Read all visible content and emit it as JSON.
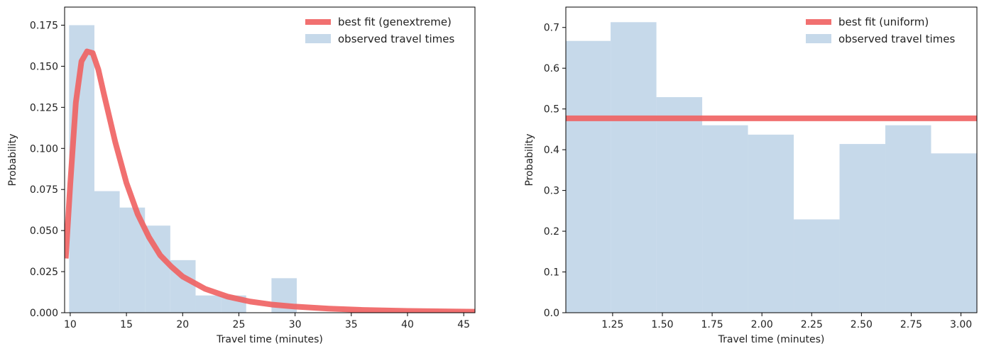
{
  "chart_data": [
    {
      "type": "bar",
      "subtype": "histogram-with-fit",
      "xlabel": "Travel time (minutes)",
      "ylabel": "Probability",
      "xlim": [
        9.5,
        46
      ],
      "ylim": [
        0,
        0.186
      ],
      "xticks": [
        10,
        15,
        20,
        25,
        30,
        35,
        40,
        45
      ],
      "xtick_labels": [
        "10",
        "15",
        "20",
        "25",
        "30",
        "35",
        "40",
        "45"
      ],
      "yticks": [
        0,
        0.025,
        0.05,
        0.075,
        0.1,
        0.125,
        0.15,
        0.175
      ],
      "ytick_labels": [
        "0.000",
        "0.025",
        "0.050",
        "0.075",
        "0.100",
        "0.125",
        "0.150",
        "0.175"
      ],
      "histogram": {
        "name": "observed travel times",
        "color": "#c6d9ea",
        "bin_edges": [
          9.9,
          12.15,
          14.4,
          16.65,
          18.9,
          21.15,
          23.4,
          25.65,
          27.9,
          30.15
        ],
        "values": [
          0.175,
          0.074,
          0.064,
          0.053,
          0.032,
          0.0105,
          0.0105,
          0.0,
          0.021
        ]
      },
      "fit": {
        "name": "best fit (genextreme)",
        "color": "#f06060",
        "x": [
          9.6,
          10,
          10.5,
          11,
          11.5,
          12,
          12.5,
          13,
          14,
          15,
          16,
          17,
          18,
          19,
          20,
          22,
          24,
          26,
          28,
          30,
          33,
          36,
          40,
          46
        ],
        "y": [
          0.033,
          0.078,
          0.128,
          0.153,
          0.159,
          0.158,
          0.148,
          0.133,
          0.104,
          0.079,
          0.06,
          0.046,
          0.035,
          0.028,
          0.022,
          0.0145,
          0.0098,
          0.0068,
          0.0049,
          0.0037,
          0.0025,
          0.0017,
          0.0011,
          0.0006
        ]
      },
      "legend": {
        "placement": "top-right"
      }
    },
    {
      "type": "bar",
      "subtype": "histogram-with-fit",
      "xlabel": "Travel time (minutes)",
      "ylabel": "Probability",
      "xlim": [
        1.015,
        3.08
      ],
      "ylim": [
        0,
        0.75
      ],
      "xticks": [
        1.25,
        1.5,
        1.75,
        2.0,
        2.25,
        2.5,
        2.75,
        3.0
      ],
      "xtick_labels": [
        "1.25",
        "1.50",
        "1.75",
        "2.00",
        "2.25",
        "2.50",
        "2.75",
        "3.00"
      ],
      "yticks": [
        0,
        0.1,
        0.2,
        0.3,
        0.4,
        0.5,
        0.6,
        0.7
      ],
      "ytick_labels": [
        "0.0",
        "0.1",
        "0.2",
        "0.3",
        "0.4",
        "0.5",
        "0.6",
        "0.7"
      ],
      "histogram": {
        "name": "observed travel times",
        "color": "#c6d9ea",
        "bin_edges": [
          1.015,
          1.24,
          1.47,
          1.7,
          1.93,
          2.16,
          2.39,
          2.62,
          2.85,
          3.08
        ],
        "values": [
          0.667,
          0.713,
          0.529,
          0.46,
          0.437,
          0.229,
          0.414,
          0.46,
          0.391
        ]
      },
      "fit": {
        "name": "best fit (uniform)",
        "color": "#f06060",
        "x": [
          1.015,
          3.08
        ],
        "y": [
          0.477,
          0.477
        ]
      },
      "legend": {
        "placement": "top-right"
      }
    }
  ]
}
